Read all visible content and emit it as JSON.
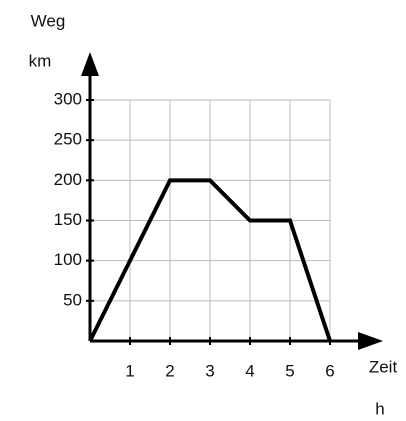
{
  "chart_data": {
    "type": "line",
    "y_label": "Weg",
    "y_unit": "km",
    "x_label": "Zeit",
    "x_unit": "h",
    "x": [
      0,
      2,
      3,
      4,
      5,
      6
    ],
    "series": [
      {
        "color": "#000000",
        "values": [
          0,
          200,
          200,
          150,
          150,
          0
        ]
      }
    ],
    "xlim": [
      0,
      6
    ],
    "xticks": [
      1,
      2,
      3,
      4,
      5,
      6
    ],
    "ylim": [
      0,
      300
    ],
    "yticks": [
      50,
      100,
      150,
      200,
      250,
      300
    ],
    "grid": true
  }
}
